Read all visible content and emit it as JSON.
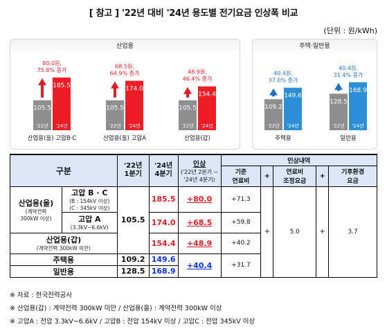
{
  "title": "[ 참고 ] '22년 대비 '24년 용도별 전기요금 인상폭 비교",
  "unit": "(단위 : 원/kWh)",
  "colors": {
    "red_bar": "#ee1c25",
    "gray_bar": "#8e8e8e",
    "blue_bar": "#1f73c9",
    "light_blue_bar": "#2a8fd6",
    "red_text": "#e31b23",
    "blue_text": "#1f73c9"
  },
  "chart_data": [
    {
      "type": "bar",
      "panel_title": "산업용",
      "categories": [
        "산업용(을) 고압B·C",
        "산업용(을) 고압A",
        "산업용(갑)"
      ],
      "series": [
        {
          "name": "'22년",
          "values": [
            105.5,
            105.5,
            105.5
          ]
        },
        {
          "name": "'24년",
          "values": [
            185.5,
            174.0,
            154.4
          ]
        }
      ],
      "bar_labels": {
        "old": [
          "'22년",
          "'22년",
          "'22년"
        ],
        "new": [
          "'24년",
          "'24년",
          "'24년"
        ]
      },
      "value_labels": {
        "old": [
          "105.5",
          "105.5",
          "105.5"
        ],
        "new": [
          "185.5",
          "174.0",
          "154.4"
        ]
      },
      "annotations": [
        [
          "80.0원,",
          "75.8% 증가"
        ],
        [
          "68.5원,",
          "64.9% 증가"
        ],
        [
          "48.9원,",
          "46.4% 증가"
        ]
      ],
      "ylim": [
        0,
        200
      ]
    },
    {
      "type": "bar",
      "panel_title": "주택·일반용",
      "categories": [
        "주택용",
        "일반용"
      ],
      "series": [
        {
          "name": "'22년",
          "values": [
            109.2,
            128.5
          ]
        },
        {
          "name": "'24년",
          "values": [
            149.6,
            168.9
          ]
        }
      ],
      "bar_labels": {
        "old": [
          "'22년",
          "'22년"
        ],
        "new": [
          "'24년",
          "'24년"
        ]
      },
      "value_labels": {
        "old": [
          "109.2",
          "128.5"
        ],
        "new": [
          "149.6",
          "168.9"
        ]
      },
      "annotations": [
        [
          "40.4원,",
          "37.0% 증가"
        ],
        [
          "40.4원,",
          "31.4% 증가"
        ]
      ],
      "ylim": [
        0,
        200
      ]
    }
  ],
  "table": {
    "h_category": "구분",
    "h_q22": [
      "'22년",
      "1분기"
    ],
    "h_q24": [
      "'24년",
      "4분기"
    ],
    "h_hike": "인상",
    "h_hike_sub": [
      "('22년 2분기 ~",
      "'24년 4분기)"
    ],
    "h_detail": "인상내역",
    "h_base": [
      "기준",
      "연료비"
    ],
    "h_plus": "+",
    "h_fuel_adj": [
      "연료비",
      "조정요금"
    ],
    "h_climate": [
      "기후환경",
      "요금"
    ],
    "ind_eul_label": "산업용(을)",
    "ind_eul_note": [
      "(계약전력",
      "300kW 이상)"
    ],
    "hv_bc_label": "고압 B · C",
    "hv_bc_note": [
      "(B : 154kV 이상)",
      "(C : 345kV 이상)"
    ],
    "hv_a_label": "고압 A",
    "hv_a_note": "(3.3kV~6.6kV)",
    "ind_gap_label": "산업용(갑)",
    "ind_gap_note": "(계약전력 300kW 미만)",
    "res_label": "주택용",
    "gen_label": "일반용",
    "ind_q22": "105.5",
    "bc_q24": "185.5",
    "bc_hike": "+80.0",
    "bc_base": "+71.3",
    "a_q24": "174.0",
    "a_hike": "+68.5",
    "a_base": "+59.8",
    "gap_q24": "154.4",
    "gap_hike": "+48.9",
    "gap_base": "+40.2",
    "res_q22": "109.2",
    "res_q24": "149.6",
    "gen_q22": "128.5",
    "gen_q24": "168.9",
    "rg_hike": "+40.4",
    "rg_base": "+31.7",
    "fuel_adj": "5.0",
    "climate": "3.7"
  },
  "footnotes": [
    "※ 자료 : 한국전력공사",
    "※ 산업용(갑) : 계약전력 300kW 미만 / 산업용(을) : 계약전력 300kW 이상",
    "※ 고압A : 전압 3.3kV~6.6kV / 고압B : 전압 154kV 이상 / 고압C : 전압 345kV 이상"
  ]
}
